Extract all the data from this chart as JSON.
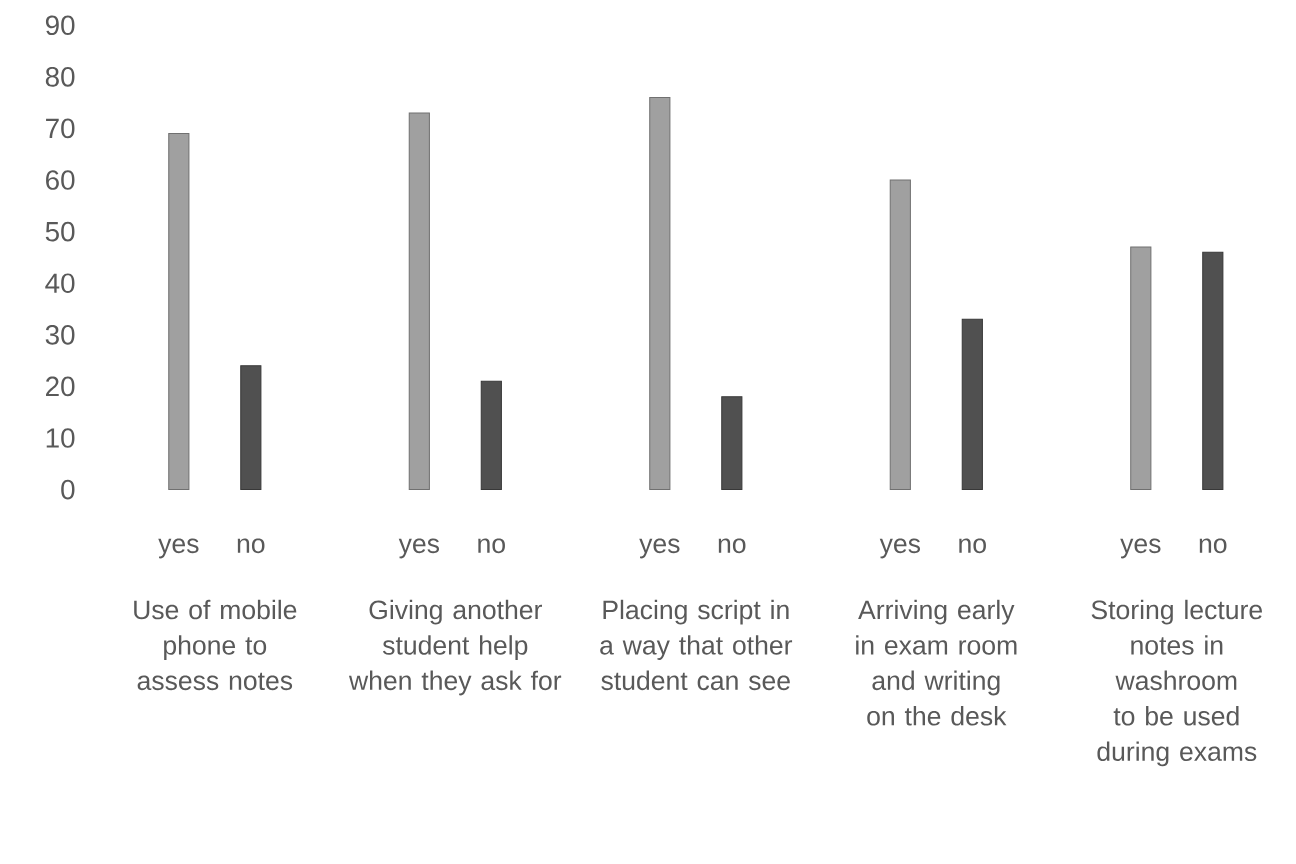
{
  "chart_data": {
    "type": "bar",
    "categories": [
      "Use of mobile phone to assess notes",
      "Giving another student help when they ask for",
      "Placing script in a way that other student can see",
      "Arriving early in exam room and writing on the desk",
      "Storing lecture notes in washroom to be used during exams"
    ],
    "series": [
      {
        "name": "yes",
        "color": "#a0a0a0",
        "values": [
          69,
          73,
          76,
          60,
          47
        ]
      },
      {
        "name": "no",
        "color": "#505050",
        "values": [
          24,
          21,
          18,
          33,
          46
        ]
      }
    ],
    "ylim": [
      0,
      90
    ],
    "yticks": [
      0,
      10,
      20,
      30,
      40,
      50,
      60,
      70,
      80,
      90
    ],
    "grid": false,
    "legend": false
  }
}
